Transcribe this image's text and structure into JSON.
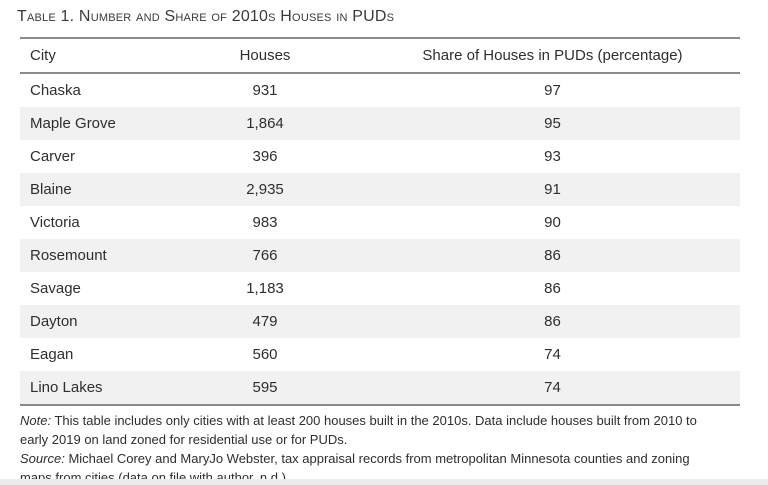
{
  "title": "Table 1. Number and Share of 2010s Houses in PUDs",
  "table": {
    "columns": [
      "City",
      "Houses",
      "Share of Houses in PUDs (percentage)"
    ],
    "rows": [
      [
        "Chaska",
        "931",
        "97"
      ],
      [
        "Maple Grove",
        "1,864",
        "95"
      ],
      [
        "Carver",
        "396",
        "93"
      ],
      [
        "Blaine",
        "2,935",
        "91"
      ],
      [
        "Victoria",
        "983",
        "90"
      ],
      [
        "Rosemount",
        "766",
        "86"
      ],
      [
        "Savage",
        "1,183",
        "86"
      ],
      [
        "Dayton",
        "479",
        "86"
      ],
      [
        "Eagan",
        "560",
        "74"
      ],
      [
        "Lino Lakes",
        "595",
        "74"
      ]
    ]
  },
  "notes": {
    "note": {
      "label": "Note:",
      "line1": "This table includes only cities with at least 200 houses built in the 2010s. Data include houses built from 2010 to",
      "line2": "early 2019 on land zoned for residential use or for PUDs."
    },
    "source": {
      "label": "Source:",
      "line1": "Michael Corey and MaryJo Webster, tax appraisal records from metropolitan Minnesota counties and zoning",
      "line2": "maps from cities (data on file with author, n.d.)."
    }
  },
  "colors": {
    "alt_row": "#f1f1f2",
    "rule": "#8a8a8a",
    "text": "#2e2e30",
    "bottom_strip": "#ececec"
  }
}
